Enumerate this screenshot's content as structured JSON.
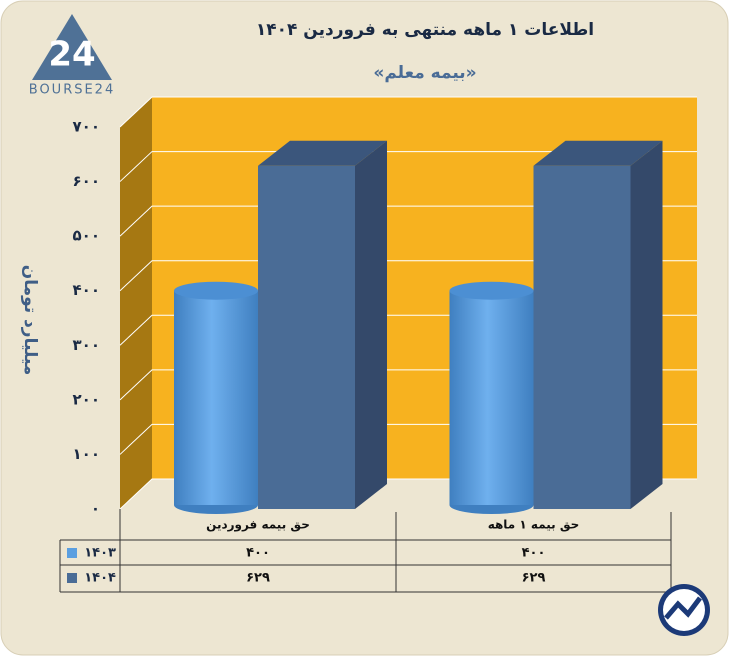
{
  "logo_mark": "24",
  "logo_text": "BOURSE24",
  "chart_data": {
    "type": "bar3d",
    "title": "اطلاعات ۱ ماهه منتهی به فروردین ۱۴۰۴",
    "subtitle": "«بیمه معلم»",
    "y_axis_label": "میلیارد تومان",
    "categories": [
      "حق بیمه فروردین",
      "حق بیمه ۱ ماهه"
    ],
    "series": [
      {
        "name": "۱۴۰۳",
        "color": "#5b9fe0",
        "values": [
          400,
          400
        ],
        "value_labels": [
          "۴۰۰",
          "۴۰۰"
        ]
      },
      {
        "name": "۱۴۰۴",
        "color": "#4a6c96",
        "values": [
          629,
          629
        ],
        "value_labels": [
          "۶۲۹",
          "۶۲۹"
        ]
      }
    ],
    "ylim": [
      0,
      700
    ],
    "yticks": [
      {
        "value": 0,
        "label": "۰"
      },
      {
        "value": 100,
        "label": "۱۰۰"
      },
      {
        "value": 200,
        "label": "۲۰۰"
      },
      {
        "value": 300,
        "label": "۳۰۰"
      },
      {
        "value": 400,
        "label": "۴۰۰"
      },
      {
        "value": 500,
        "label": "۵۰۰"
      },
      {
        "value": 600,
        "label": "۶۰۰"
      },
      {
        "value": 700,
        "label": "۷۰۰"
      }
    ],
    "grid": true
  }
}
